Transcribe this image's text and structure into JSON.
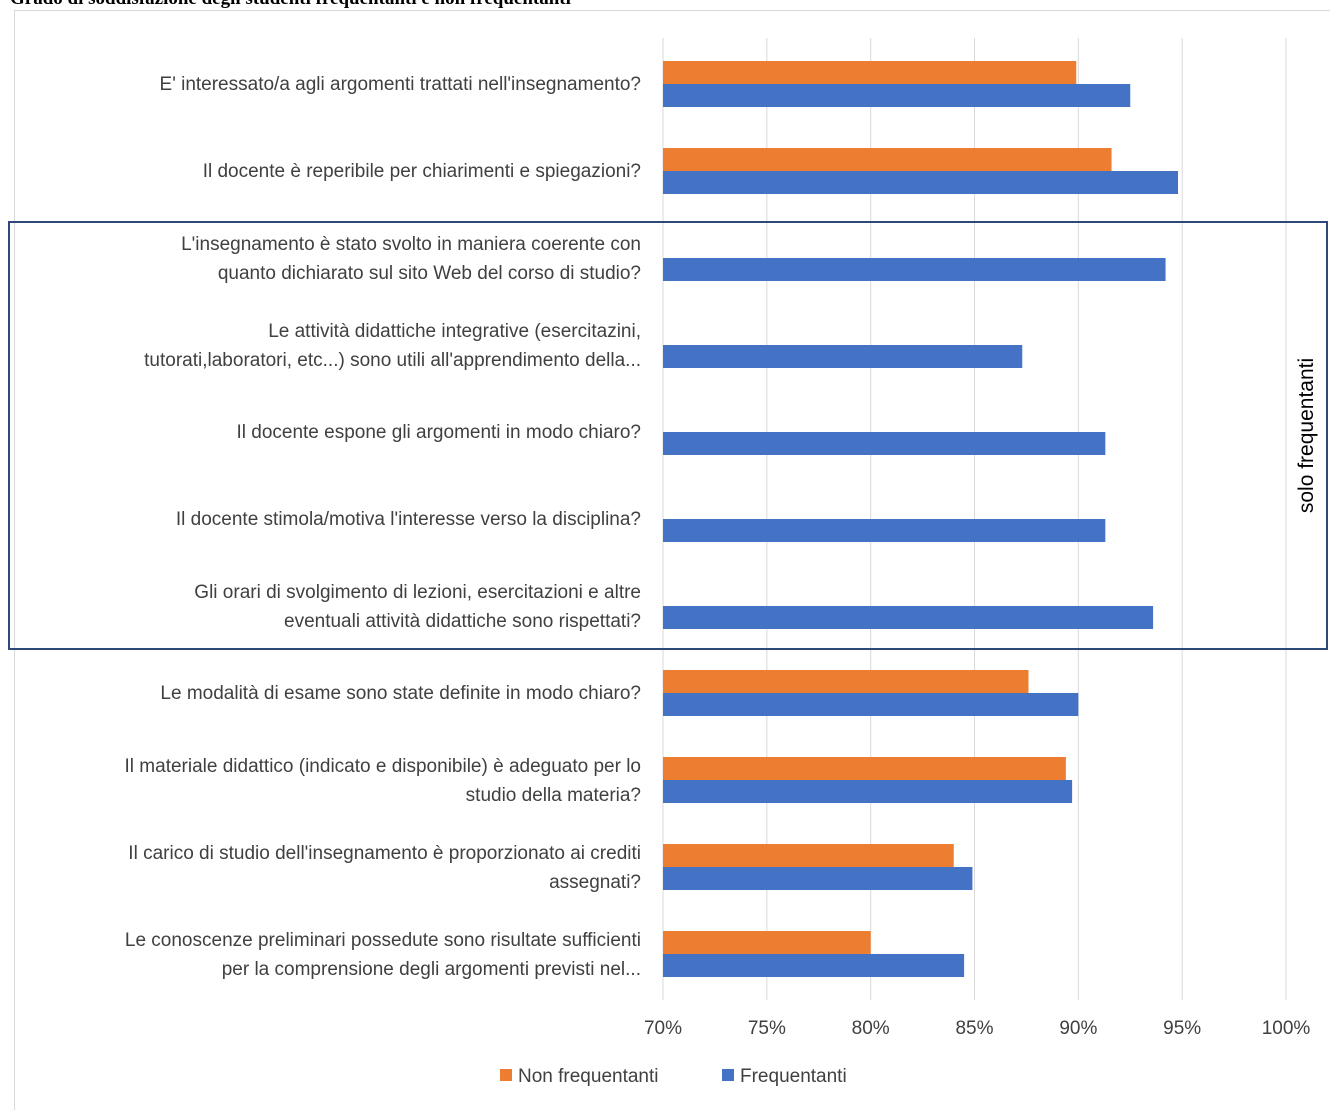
{
  "title": "Grado di soddisfazione degli studenti frequentanti e non frequentanti",
  "colors": {
    "non_frequentanti": "#ed7d31",
    "frequentanti": "#4472c4",
    "box": "#2f4a7a",
    "grid": "#d9d9d9",
    "text": "#404040"
  },
  "chart_data": {
    "type": "bar",
    "orientation": "horizontal",
    "xlim": [
      0.7,
      1.0
    ],
    "xticks": [
      "70%",
      "75%",
      "80%",
      "85%",
      "90%",
      "95%",
      "100%"
    ],
    "grid": true,
    "legend_position": "bottom",
    "annotation": "solo frequentanti",
    "categories": [
      [
        "E' interessato/a agli argomenti trattati nell'insegnamento?"
      ],
      [
        "Il docente è reperibile per chiarimenti e spiegazioni?"
      ],
      [
        "L'insegnamento è stato svolto in maniera coerente con",
        "quanto dichiarato sul sito Web del corso di studio?"
      ],
      [
        "Le attività didattiche integrative (esercitazini,",
        "tutorati,laboratori, etc...) sono utili all'apprendimento della..."
      ],
      [
        "Il docente espone gli argomenti in modo chiaro?"
      ],
      [
        "Il docente stimola/motiva l'interesse verso la disciplina?"
      ],
      [
        "Gli orari di svolgimento di lezioni, esercitazioni e altre",
        "eventuali attività didattiche sono rispettati?"
      ],
      [
        "Le modalità di esame sono state definite in modo chiaro?"
      ],
      [
        "Il materiale didattico (indicato e disponibile) è adeguato per lo",
        "studio della materia?"
      ],
      [
        "Il carico di studio dell'insegnamento è proporzionato ai crediti",
        "assegnati?"
      ],
      [
        "Le conoscenze preliminari possedute sono risultate sufficienti",
        "per la comprensione degli argomenti previsti nel..."
      ]
    ],
    "series": [
      {
        "name": "Non frequentanti",
        "values": [
          0.899,
          0.916,
          null,
          null,
          null,
          null,
          null,
          0.876,
          0.894,
          0.84,
          0.8
        ]
      },
      {
        "name": "Frequentanti",
        "values": [
          0.925,
          0.948,
          0.942,
          0.873,
          0.913,
          0.913,
          0.936,
          0.9,
          0.897,
          0.849,
          0.845
        ]
      }
    ]
  }
}
